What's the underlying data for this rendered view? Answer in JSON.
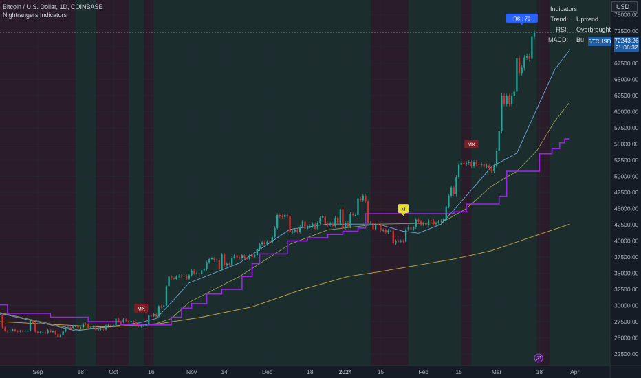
{
  "header": {
    "title": "Bitcoin / U.S. Dollar, 1D, COINBASE",
    "subtitle": "Nightrangers Indicators"
  },
  "indicator_panel": {
    "title": "Indicators",
    "rows": [
      {
        "key": "Trend:",
        "value": "Uptrend"
      },
      {
        "key": "RSI:",
        "value": "Overbrought"
      },
      {
        "key": "MACD:",
        "value": "Bu"
      }
    ]
  },
  "price_axis": {
    "currency": "USD",
    "last_price": "72243.26",
    "countdown": "21:06:32",
    "symbol_tag": "BTCUSD"
  },
  "markers": [
    {
      "label": "MX",
      "date": "2023-10-12",
      "price": 29600,
      "color": "#7a1f25"
    },
    {
      "label": "M",
      "date": "2024-01-24",
      "price": 45000,
      "color": "#e6e02c"
    },
    {
      "label": "MX",
      "date": "2024-02-20",
      "price": 55000,
      "color": "#7a1f25"
    },
    {
      "label": "RSI: 79",
      "date": "2024-03-11",
      "price": 74500,
      "color": "#2962ff"
    }
  ],
  "colors": {
    "up": "#26a69a",
    "down": "#d32f2f",
    "fast_ma": "#6fa8dc",
    "mid_ma": "#9a9a5a",
    "slow_ma": "#c8a84b",
    "trail": "#a020f0",
    "bull_band": "rgba(60,140,90,0.16)",
    "bear_band": "rgba(170,40,70,0.15)"
  },
  "chart_data": {
    "type": "candlestick",
    "symbol": "Bitcoin / U.S. Dollar",
    "timeframe": "1D",
    "exchange": "COINBASE",
    "x_range": [
      "2023-08-17",
      "2024-04-15"
    ],
    "ylim": [
      20700,
      77300
    ],
    "y_ticks": [
      22500,
      25000,
      27500,
      30000,
      32500,
      35000,
      37500,
      40000,
      42500,
      45000,
      47500,
      50000,
      52500,
      55000,
      57500,
      60000,
      62500,
      65000,
      67500,
      70000,
      72500,
      75000
    ],
    "x_ticks": [
      {
        "date": "2023-09-01",
        "label": "Sep"
      },
      {
        "date": "2023-09-18",
        "label": "18"
      },
      {
        "date": "2023-10-01",
        "label": "Oct"
      },
      {
        "date": "2023-10-16",
        "label": "16"
      },
      {
        "date": "2023-11-01",
        "label": "Nov"
      },
      {
        "date": "2023-11-14",
        "label": "14"
      },
      {
        "date": "2023-12-01",
        "label": "Dec"
      },
      {
        "date": "2023-12-18",
        "label": "18"
      },
      {
        "date": "2024-01-01",
        "label": "2024"
      },
      {
        "date": "2024-01-15",
        "label": "15"
      },
      {
        "date": "2024-02-01",
        "label": "Feb"
      },
      {
        "date": "2024-02-15",
        "label": "15"
      },
      {
        "date": "2024-03-01",
        "label": "Mar"
      },
      {
        "date": "2024-03-18",
        "label": "18"
      },
      {
        "date": "2024-04-01",
        "label": "Apr"
      }
    ],
    "close_series": {
      "start": "2023-08-17",
      "values": [
        28700,
        26600,
        26100,
        26000,
        26150,
        26300,
        26050,
        26000,
        26100,
        26050,
        26100,
        26100,
        27700,
        27300,
        25950,
        25800,
        25850,
        25850,
        25750,
        26200,
        25900,
        26050,
        25600,
        25150,
        25500,
        26000,
        26550,
        26600,
        26550,
        26800,
        26800,
        26550,
        26600,
        27200,
        27100,
        26600,
        26600,
        26600,
        26200,
        26300,
        26400,
        26300,
        26900,
        27000,
        26900,
        26950,
        27990,
        27500,
        27450,
        27900,
        27600,
        27400,
        27600,
        27400,
        26900,
        26750,
        26850,
        26850,
        27150,
        28500,
        28400,
        28700,
        28300,
        29900,
        29800,
        30000,
        33000,
        34500,
        34200,
        34100,
        34500,
        34650,
        34500,
        34600,
        34150,
        34700,
        35400,
        35000,
        35000,
        34900,
        35450,
        35600,
        36700,
        37200,
        37300,
        37000,
        37100,
        35600,
        37900,
        36200,
        36500,
        36300,
        37400,
        37800,
        37450,
        37350,
        37800,
        37300,
        37200,
        37800,
        37500,
        37800,
        38700,
        39500,
        39800,
        39500,
        39900,
        39800,
        40600,
        42000,
        44000,
        43800,
        43700,
        44000,
        43850,
        41300,
        41500,
        41700,
        41400,
        42200,
        43000,
        41900,
        42200,
        42300,
        42600,
        41900,
        42800,
        43600,
        43800,
        42600,
        42500,
        42700,
        42300,
        43600,
        42600,
        44900,
        42000,
        42800,
        42200,
        44200,
        44000,
        44000,
        46600,
        46300,
        47000,
        46100,
        42800,
        42800,
        41800,
        42600,
        42500,
        41600,
        41700,
        41300,
        41600,
        41600,
        39600,
        40000,
        39900,
        40000,
        39900,
        41800,
        42150,
        41800,
        42100,
        43300,
        43000,
        42550,
        42700,
        42500,
        43200,
        43100,
        42600,
        42700,
        43000,
        43100,
        43400,
        45300,
        47000,
        48300,
        47200,
        49900,
        51800,
        52100,
        51900,
        52100,
        52200,
        51600,
        52200,
        51900,
        51800,
        51900,
        51500,
        51700,
        51300,
        50800,
        51600,
        54000,
        57000,
        62500,
        61200,
        62400,
        61200,
        62400,
        63100,
        68300,
        66000,
        66800,
        68400,
        68600,
        68200,
        71600,
        72200
      ]
    },
    "series": [
      {
        "name": "MA fast",
        "color": "#6fa8dc",
        "values": [
          [
            0,
            28800
          ],
          [
            30,
            26100
          ],
          [
            55,
            27300
          ],
          [
            62,
            28000
          ],
          [
            68,
            30500
          ],
          [
            75,
            33500
          ],
          [
            95,
            36600
          ],
          [
            115,
            41800
          ],
          [
            130,
            42600
          ],
          [
            150,
            42600
          ],
          [
            160,
            41500
          ],
          [
            166,
            41200
          ],
          [
            175,
            42600
          ],
          [
            185,
            47000
          ],
          [
            195,
            51500
          ],
          [
            205,
            53600
          ],
          [
            213,
            60500
          ],
          [
            220,
            66500
          ],
          [
            226,
            69600
          ]
        ]
      },
      {
        "name": "MA mid",
        "color": "#9a9a5a",
        "values": [
          [
            0,
            28900
          ],
          [
            30,
            26300
          ],
          [
            55,
            27000
          ],
          [
            62,
            27200
          ],
          [
            68,
            28000
          ],
          [
            75,
            30500
          ],
          [
            95,
            34500
          ],
          [
            115,
            39500
          ],
          [
            130,
            41700
          ],
          [
            150,
            42600
          ],
          [
            165,
            42700
          ],
          [
            175,
            42800
          ],
          [
            185,
            45000
          ],
          [
            195,
            48500
          ],
          [
            205,
            50800
          ],
          [
            213,
            54000
          ],
          [
            220,
            58500
          ],
          [
            226,
            61500
          ]
        ]
      },
      {
        "name": "MA slow",
        "color": "#c8a84b",
        "values": [
          [
            0,
            27500
          ],
          [
            40,
            26700
          ],
          [
            60,
            27000
          ],
          [
            80,
            28200
          ],
          [
            100,
            29800
          ],
          [
            120,
            32500
          ],
          [
            138,
            34500
          ],
          [
            150,
            35200
          ],
          [
            165,
            36200
          ],
          [
            180,
            37200
          ],
          [
            195,
            38500
          ],
          [
            210,
            40500
          ],
          [
            226,
            42600
          ]
        ]
      },
      {
        "name": "Trailing stop",
        "color": "#a020f0",
        "values": [
          [
            0,
            30100
          ],
          [
            3,
            30100
          ],
          [
            3,
            28800
          ],
          [
            20,
            28800
          ],
          [
            20,
            28200
          ],
          [
            35,
            28200
          ],
          [
            35,
            27500
          ],
          [
            48,
            27500
          ],
          [
            48,
            27000
          ],
          [
            68,
            27000
          ],
          [
            68,
            28200
          ],
          [
            72,
            28200
          ],
          [
            72,
            29600
          ],
          [
            76,
            29600
          ],
          [
            76,
            30300
          ],
          [
            82,
            30300
          ],
          [
            82,
            31800
          ],
          [
            88,
            31800
          ],
          [
            88,
            32500
          ],
          [
            96,
            32500
          ],
          [
            96,
            34500
          ],
          [
            100,
            34500
          ],
          [
            100,
            36500
          ],
          [
            103,
            36500
          ],
          [
            103,
            38000
          ],
          [
            114,
            38000
          ],
          [
            114,
            40000
          ],
          [
            122,
            40000
          ],
          [
            122,
            40500
          ],
          [
            130,
            40500
          ],
          [
            130,
            41000
          ],
          [
            136,
            41000
          ],
          [
            136,
            41500
          ],
          [
            142,
            41500
          ],
          [
            142,
            42000
          ],
          [
            145,
            42000
          ],
          [
            145,
            44200
          ],
          [
            180,
            44200
          ],
          [
            180,
            44500
          ],
          [
            185,
            44500
          ],
          [
            185,
            45700
          ],
          [
            198,
            45700
          ],
          [
            198,
            46900
          ],
          [
            201,
            46900
          ],
          [
            201,
            50800
          ],
          [
            214,
            50800
          ],
          [
            214,
            53500
          ],
          [
            219,
            53500
          ],
          [
            219,
            54300
          ],
          [
            222,
            54300
          ],
          [
            222,
            55200
          ],
          [
            224,
            55200
          ],
          [
            224,
            55800
          ],
          [
            226,
            55800
          ]
        ]
      }
    ],
    "background_regimes": [
      {
        "from": 0,
        "to": 30,
        "state": "bear"
      },
      {
        "from": 30,
        "to": 38,
        "state": "bull"
      },
      {
        "from": 38,
        "to": 51,
        "state": "bear"
      },
      {
        "from": 51,
        "to": 57,
        "state": "bull"
      },
      {
        "from": 57,
        "to": 61,
        "state": "bear"
      },
      {
        "from": 61,
        "to": 147,
        "state": "bull"
      },
      {
        "from": 147,
        "to": 162,
        "state": "bear"
      },
      {
        "from": 162,
        "to": 183,
        "state": "bull"
      },
      {
        "from": 183,
        "to": 187,
        "state": "bear"
      },
      {
        "from": 187,
        "to": 213,
        "state": "bull"
      },
      {
        "from": 213,
        "to": 218,
        "state": "bear"
      },
      {
        "from": 218,
        "to": 242,
        "state": "bull"
      }
    ]
  }
}
